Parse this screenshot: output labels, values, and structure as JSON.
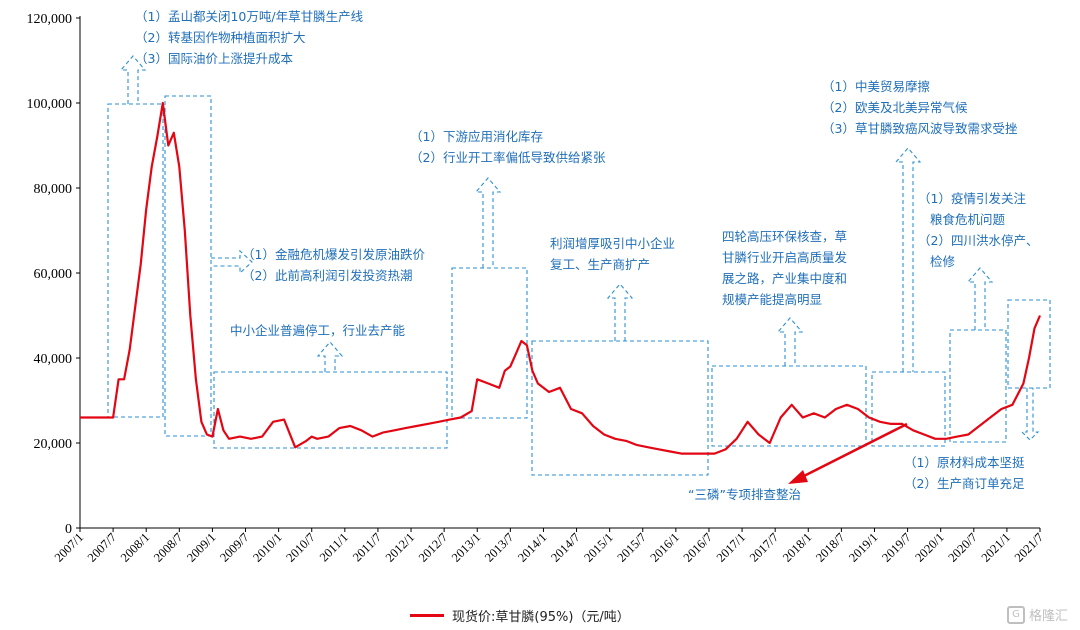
{
  "chart_data": {
    "type": "line",
    "title": "",
    "xlabel": "",
    "ylabel": "",
    "ylim": [
      0,
      120000
    ],
    "yticks": [
      0,
      20000,
      40000,
      60000,
      80000,
      100000,
      120000
    ],
    "ytick_labels": [
      "0",
      "20,000",
      "40,000",
      "60,000",
      "80,000",
      "100,000",
      "120,000"
    ],
    "xtick_labels": [
      "2007/1",
      "2007/7",
      "2008/1",
      "2008/7",
      "2009/1",
      "2009/7",
      "2010/1",
      "2010/7",
      "2011/1",
      "2011/7",
      "2012/1",
      "2012/7",
      "2013/1",
      "2013/7",
      "2014/1",
      "2014/7",
      "2015/1",
      "2015/7",
      "2016/1",
      "2016/7",
      "2017/1",
      "2017/7",
      "2018/1",
      "2018/7",
      "2019/1",
      "2019/7",
      "2020/1",
      "2020/7",
      "2021/1",
      "2021/7"
    ],
    "legend": {
      "position": "bottom",
      "label": "现货价:草甘膦(95%)（元/吨）"
    },
    "series": [
      {
        "name": "现货价:草甘膦(95%)（元/吨）",
        "color": "#e30613",
        "x": [
          "2007/1",
          "2007/3",
          "2007/5",
          "2007/6",
          "2007/7",
          "2007/8",
          "2007/9",
          "2007/10",
          "2007/11",
          "2007/12",
          "2008/1",
          "2008/2",
          "2008/3",
          "2008/4",
          "2008/5",
          "2008/6",
          "2008/7",
          "2008/8",
          "2008/9",
          "2008/10",
          "2008/11",
          "2008/12",
          "2009/1",
          "2009/2",
          "2009/3",
          "2009/4",
          "2009/6",
          "2009/8",
          "2009/10",
          "2009/12",
          "2010/2",
          "2010/4",
          "2010/6",
          "2010/7",
          "2010/8",
          "2010/10",
          "2010/12",
          "2011/2",
          "2011/4",
          "2011/6",
          "2011/8",
          "2011/10",
          "2011/12",
          "2012/2",
          "2012/4",
          "2012/6",
          "2012/8",
          "2012/10",
          "2012/12",
          "2013/1",
          "2013/3",
          "2013/5",
          "2013/6",
          "2013/7",
          "2013/8",
          "2013/9",
          "2013/10",
          "2013/11",
          "2013/12",
          "2014/2",
          "2014/4",
          "2014/6",
          "2014/8",
          "2014/10",
          "2014/12",
          "2015/2",
          "2015/4",
          "2015/6",
          "2015/8",
          "2015/10",
          "2015/12",
          "2016/2",
          "2016/4",
          "2016/6",
          "2016/8",
          "2016/10",
          "2016/12",
          "2017/2",
          "2017/4",
          "2017/6",
          "2017/8",
          "2017/10",
          "2017/12",
          "2018/2",
          "2018/4",
          "2018/6",
          "2018/8",
          "2018/10",
          "2018/12",
          "2019/2",
          "2019/4",
          "2019/6",
          "2019/8",
          "2019/10",
          "2019/12",
          "2020/2",
          "2020/4",
          "2020/6",
          "2020/8",
          "2020/10",
          "2020/12",
          "2021/2",
          "2021/4",
          "2021/5",
          "2021/6",
          "2021/7"
        ],
        "values": [
          26000,
          26000,
          26000,
          26000,
          26000,
          35000,
          35000,
          42000,
          52000,
          62000,
          75000,
          85000,
          92000,
          100000,
          90000,
          93000,
          85000,
          70000,
          50000,
          35000,
          25000,
          22000,
          21500,
          28000,
          23000,
          21000,
          21500,
          21000,
          21500,
          25000,
          25500,
          19000,
          20500,
          21500,
          21000,
          21500,
          23500,
          24000,
          23000,
          21500,
          22500,
          23000,
          23500,
          24000,
          24500,
          25000,
          25500,
          26000,
          27500,
          35000,
          34000,
          33000,
          37000,
          38000,
          41000,
          44000,
          43000,
          37000,
          34000,
          32000,
          33000,
          28000,
          27000,
          24000,
          22000,
          21000,
          20500,
          19500,
          19000,
          18500,
          18000,
          17500,
          17500,
          17500,
          17500,
          18500,
          21000,
          25000,
          22000,
          20000,
          26000,
          29000,
          26000,
          27000,
          26000,
          28000,
          29000,
          28000,
          26000,
          25000,
          24500,
          24500,
          23000,
          22000,
          21000,
          21000,
          21500,
          22000,
          24000,
          26000,
          28000,
          29000,
          34000,
          40000,
          47000,
          50000
        ]
      }
    ],
    "annotations": [
      {
        "id": "a1",
        "lines": [
          "（1）孟山都关闭10万吨/年草甘膦生产线",
          "（2）转基因作物种植面积扩大",
          "（3）国际油价上涨提升成本"
        ]
      },
      {
        "id": "a2",
        "lines": [
          "（1）金融危机爆发引发原油跌价",
          "（2）此前高利润引发投资热潮"
        ]
      },
      {
        "id": "a3",
        "lines": [
          "中小企业普遍停工，行业去产能"
        ]
      },
      {
        "id": "a4",
        "lines": [
          "（1）下游应用消化库存",
          "（2）行业开工率偏低导致供给紧张"
        ]
      },
      {
        "id": "a5",
        "lines": [
          "利润增厚吸引中小企业",
          "复工、生产商扩产"
        ]
      },
      {
        "id": "a6",
        "lines": [
          "四轮高压环保核查，草",
          "甘膦行业开启高质量发",
          "展之路，产业集中度和",
          "规模产能提高明显"
        ]
      },
      {
        "id": "a7",
        "lines": [
          "（1）中美贸易摩擦",
          "（2）欧美及北美异常气候",
          "（3）草甘膦致癌风波导致需求受挫"
        ]
      },
      {
        "id": "a8",
        "lines": [
          "（1）疫情引发关注",
          "粮食危机问题",
          "（2）四川洪水停产、",
          "检修"
        ]
      },
      {
        "id": "a9",
        "lines": [
          "“三磷”专项排查整治"
        ]
      },
      {
        "id": "a10",
        "lines": [
          "（1）原材料成本坚挺",
          "（2）生产商订单充足"
        ]
      }
    ],
    "grid": false
  },
  "watermark": {
    "logo": "G",
    "text": "格隆汇"
  }
}
